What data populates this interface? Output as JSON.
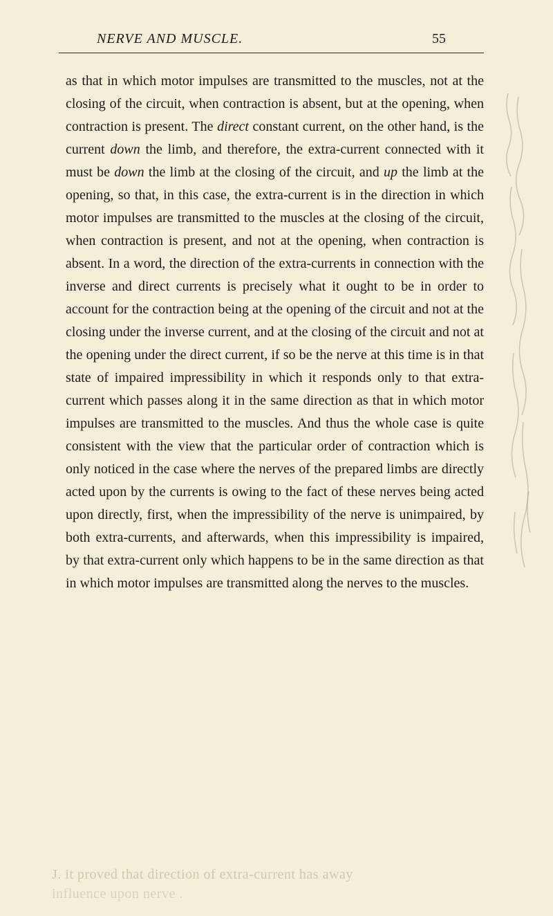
{
  "header": {
    "title": "NERVE AND MUSCLE.",
    "page_number": "55"
  },
  "paragraph": {
    "text_parts": [
      {
        "text": "as that in which motor impulses are transmitted to the muscles, not at the closing of the circuit, when contraction is absent, but at the opening, when contraction is present. The ",
        "italic": false
      },
      {
        "text": "direct",
        "italic": true
      },
      {
        "text": " constant current, on the other hand, is the current ",
        "italic": false
      },
      {
        "text": "down",
        "italic": true
      },
      {
        "text": " the limb, and therefore, the extra-current connected with it must be ",
        "italic": false
      },
      {
        "text": "down",
        "italic": true
      },
      {
        "text": " the limb at the closing of the circuit, and ",
        "italic": false
      },
      {
        "text": "up",
        "italic": true
      },
      {
        "text": " the limb at the opening, so that, in this case, the extra-current is in the direction in which motor impulses are transmitted to the muscles at the closing of the circuit, when contraction is present, and not at the opening, when contraction is absent. In a word, the direction of the extra-currents in connection with the inverse and direct currents is precisely what it ought to be in order to account for the contraction being at the opening of the circuit and not at the closing under the inverse current, and at the closing of the circuit and not at the opening under the direct current, if so be the nerve at this time is in that state of impaired impressibility in which it responds only to that extra-current which passes along it in the same direction as that in which motor impulses are transmitted to the muscles. And thus the whole case is quite consistent with the view that the particular order of contraction which is only noticed in the case where the nerves of the prepared limbs are directly acted upon by the currents is owing to the fact of these nerves being acted upon directly, first, when the impressibility of the nerve is unimpaired, by both extra-currents, and afterwards, when this impressibility is impaired, by that extra-current only which happens to be in the same direction as that in which motor impulses are transmitted along the nerves to the muscles.",
        "italic": false
      }
    ]
  },
  "annotations": {
    "handwriting_line1": "J. it proved that direction of extra-current has away",
    "handwriting_line2": "influence upon nerve ."
  },
  "colors": {
    "page_background": "#f5eed9",
    "text_color": "#1a1a1a",
    "annotation_color": "#b8a888",
    "handwriting_color": "#c4b89a",
    "rule_color": "#2a2a2a"
  },
  "typography": {
    "body_font_size": 20,
    "header_font_size": 20,
    "line_height": 1.65
  }
}
